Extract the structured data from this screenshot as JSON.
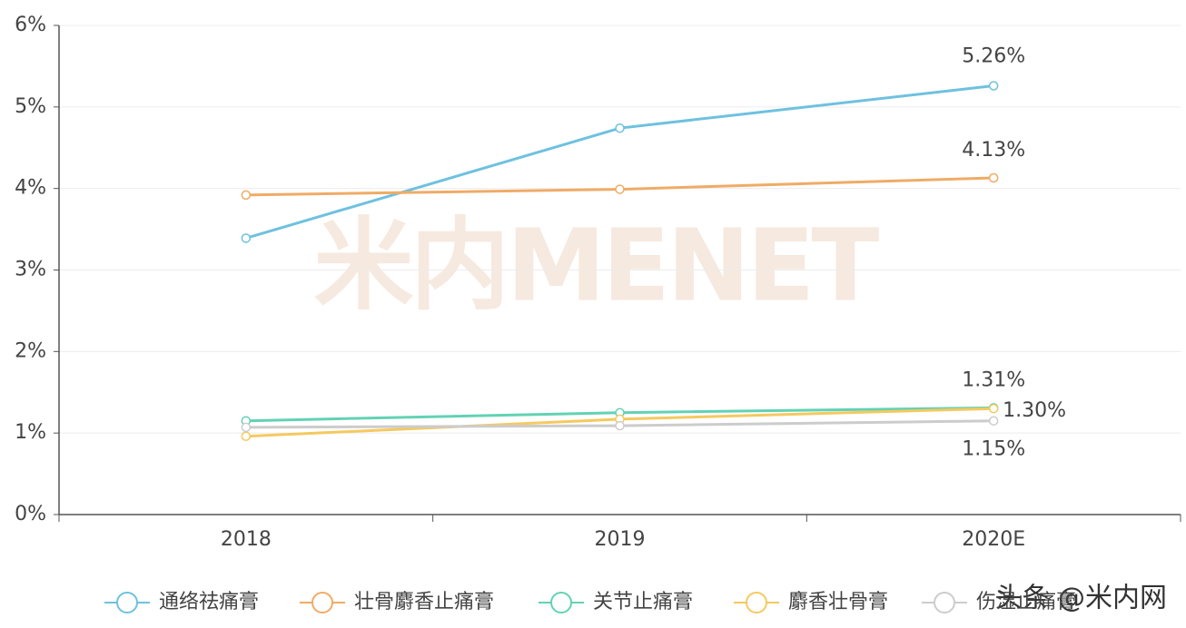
{
  "chart_data": {
    "type": "line",
    "categories": [
      "2018",
      "2019",
      "2020E"
    ],
    "series": [
      {
        "name": "通络祛痛膏",
        "color": "#6ec1df",
        "values": [
          3.39,
          4.74,
          5.26
        ],
        "value_labels": [
          null,
          null,
          "5.26%"
        ]
      },
      {
        "name": "壮骨麝香止痛膏",
        "color": "#f0ab66",
        "values": [
          3.92,
          3.99,
          4.13
        ],
        "value_labels": [
          null,
          null,
          "4.13%"
        ]
      },
      {
        "name": "关节止痛膏",
        "color": "#62d2b4",
        "values": [
          1.15,
          1.25,
          1.31
        ],
        "value_labels": [
          null,
          null,
          "1.31%"
        ]
      },
      {
        "name": "麝香壮骨膏",
        "color": "#f5c95f",
        "values": [
          0.96,
          1.17,
          1.3
        ],
        "value_labels": [
          null,
          null,
          "1.30%"
        ]
      },
      {
        "name": "伤湿止痛膏",
        "color": "#cccccc",
        "values": [
          1.07,
          1.09,
          1.15
        ],
        "value_labels": [
          null,
          null,
          "1.15%"
        ]
      }
    ],
    "ylim": [
      0,
      6
    ],
    "yticks": [
      {
        "value": 0,
        "label": "0%"
      },
      {
        "value": 1,
        "label": "1%"
      },
      {
        "value": 2,
        "label": "2%"
      },
      {
        "value": 3,
        "label": "3%"
      },
      {
        "value": 4,
        "label": "4%"
      },
      {
        "value": 5,
        "label": "5%"
      },
      {
        "value": 6,
        "label": "6%"
      }
    ],
    "grid": true,
    "watermark": "米内MENET",
    "credit": "头条 @米内网"
  }
}
